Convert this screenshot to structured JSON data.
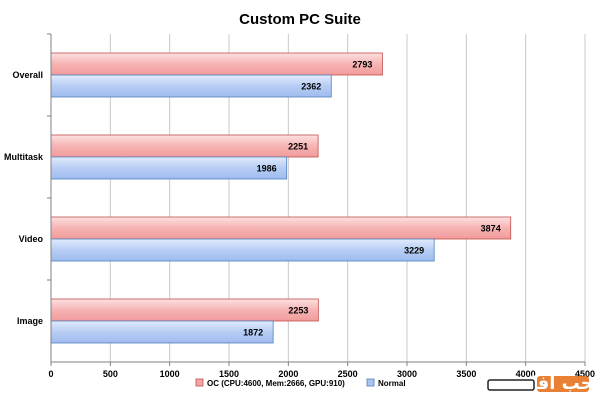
{
  "chart_data": {
    "type": "bar",
    "orientation": "horizontal",
    "title": "Custom PC Suite",
    "categories": [
      "Overall",
      "Multitask",
      "Video",
      "Image"
    ],
    "series": [
      {
        "name": "OC (CPU:4600, Mem:2666, GPU:910)",
        "values": [
          2793,
          2251,
          3874,
          2253
        ],
        "color": "#f4a6a6"
      },
      {
        "name": "Normal",
        "values": [
          2362,
          1986,
          3229,
          1872
        ],
        "color": "#a9c4f2"
      }
    ],
    "xlim": [
      0,
      4500
    ],
    "xticks": [
      0,
      500,
      1000,
      1500,
      2000,
      2500,
      3000,
      3500,
      4000,
      4500
    ],
    "grid": true,
    "legend_position": "bottom"
  },
  "watermark": {
    "text": "سحب افاق",
    "color": "#e6731f"
  }
}
